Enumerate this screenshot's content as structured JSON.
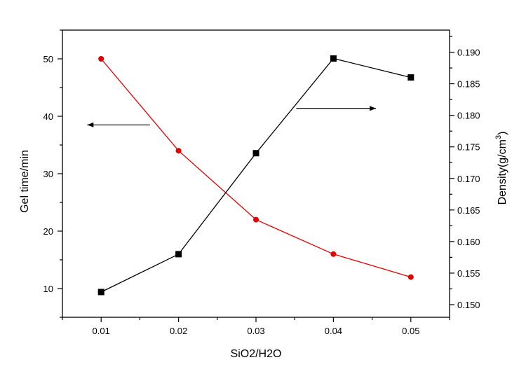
{
  "chart_data": {
    "type": "line",
    "title": "",
    "x": [
      0.01,
      0.02,
      0.03,
      0.04,
      0.05
    ],
    "x_tick_labels": [
      "0.01",
      "0.02",
      "0.03",
      "0.04",
      "0.05"
    ],
    "xlabel": "SiO2/H2O",
    "xlim": [
      0.005,
      0.055
    ],
    "ylabel_left": "Gel time/min",
    "ylim_left": [
      5,
      55
    ],
    "y_left_ticks": [
      10,
      20,
      30,
      40,
      50
    ],
    "y_left_tick_labels": [
      "10",
      "20",
      "30",
      "40",
      "50"
    ],
    "ylabel_right_base": "Density(g/cm",
    "ylabel_right_sup": "3",
    "ylabel_right_close": ")",
    "ylim_right": [
      0.148,
      0.1935
    ],
    "y_right_ticks": [
      0.15,
      0.155,
      0.16,
      0.165,
      0.17,
      0.175,
      0.18,
      0.185,
      0.19
    ],
    "y_right_tick_labels": [
      "0.150",
      "0.155",
      "0.160",
      "0.165",
      "0.170",
      "0.175",
      "0.180",
      "0.185",
      "0.190"
    ],
    "grid": false,
    "series": [
      {
        "axis": "left",
        "color": "#e00000",
        "marker": "circle",
        "values": [
          50,
          34,
          22,
          16,
          12
        ]
      },
      {
        "axis": "right",
        "color": "#000000",
        "marker": "square",
        "values": [
          0.152,
          0.158,
          0.174,
          0.189,
          0.186
        ]
      }
    ],
    "annotations": [
      {
        "type": "arrow",
        "direction": "left",
        "axis": "left",
        "x_from": 0.0163,
        "x_to": 0.0082,
        "y": 38.5
      },
      {
        "type": "arrow",
        "direction": "right",
        "axis": "right",
        "x_from": 0.0352,
        "x_to": 0.0455,
        "y": 0.1811
      }
    ]
  }
}
